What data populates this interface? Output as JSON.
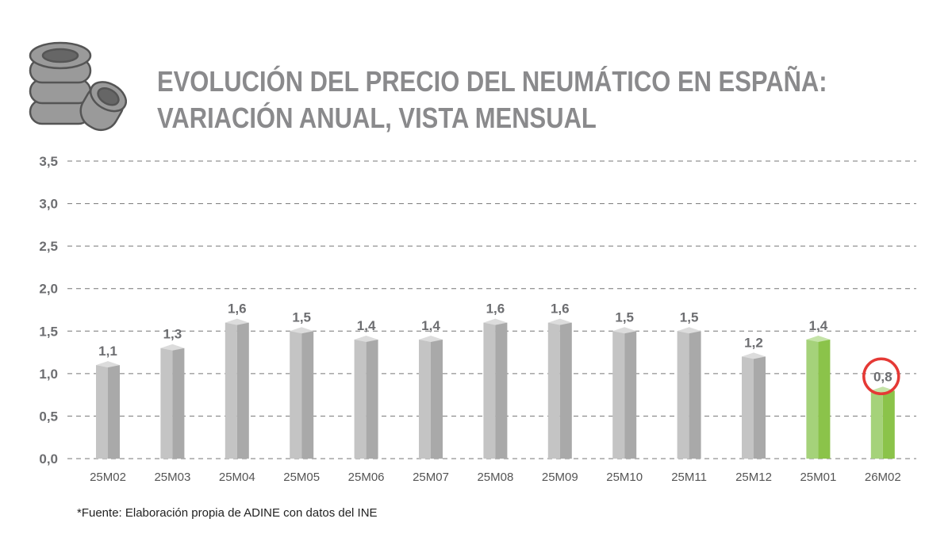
{
  "header": {
    "title_line1": "EVOLUCIÓN DEL PRECIO DEL NEUMÁTICO EN ESPAÑA:",
    "title_line2": "VARIACIÓN ANUAL, VISTA MENSUAL",
    "logo_icon": "tire-stack-icon"
  },
  "footer": {
    "source": "*Fuente: Elaboración propia de ADINE con datos del INE"
  },
  "chart_data": {
    "type": "bar",
    "title": "EVOLUCIÓN DEL PRECIO DEL NEUMÁTICO EN ESPAÑA: VARIACIÓN ANUAL, VISTA MENSUAL",
    "categories": [
      "25M02",
      "25M03",
      "25M04",
      "25M05",
      "25M06",
      "25M07",
      "25M08",
      "25M09",
      "25M10",
      "25M11",
      "25M12",
      "25M01",
      "26M02"
    ],
    "values": [
      1.1,
      1.3,
      1.6,
      1.5,
      1.4,
      1.4,
      1.6,
      1.6,
      1.5,
      1.5,
      1.2,
      1.4,
      0.8
    ],
    "data_labels": [
      "1,1",
      "1,3",
      "1,6",
      "1,5",
      "1,4",
      "1,4",
      "1,6",
      "1,6",
      "1,5",
      "1,5",
      "1,2",
      "1,4",
      "0,8"
    ],
    "yticks": [
      "0,0",
      "0,5",
      "1,0",
      "1,5",
      "2,0",
      "2,5",
      "3,0",
      "3,5"
    ],
    "ylim": [
      0,
      3.5
    ],
    "grid": true,
    "gridline_style": "dashed",
    "highlighted_categories": [
      "25M01",
      "26M02"
    ],
    "circled_label": "26M02",
    "colors": {
      "default_bar": "#b5b5b5",
      "highlight_bar": "#8bc34a",
      "circle": "#e53935",
      "label": "#6d6e71"
    }
  }
}
